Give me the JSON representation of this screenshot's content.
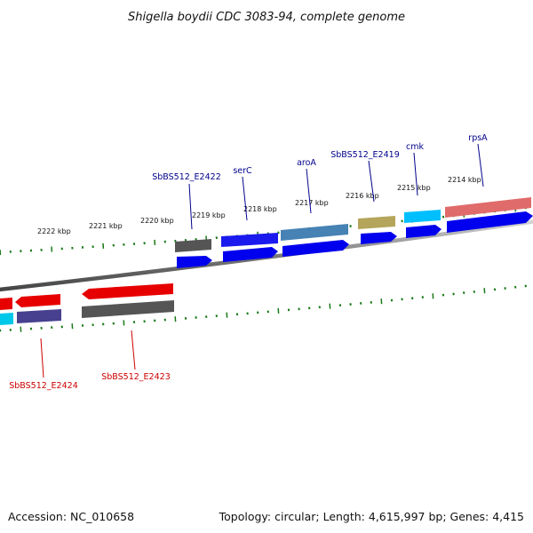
{
  "title": "Shigella boydii CDC 3083-94, complete genome",
  "footer": {
    "accession": "Accession: NC_010658",
    "summary": "Topology: circular; Length: 4,615,997 bp; Genes: 4,415"
  },
  "colors": {
    "top_label": "#00008b",
    "bottom_label": "#cc0000",
    "tick": "#1a7a1a",
    "backbone": "#8a8a8a"
  },
  "ruler_labels": [
    "2222 kbp",
    "2221 kbp",
    "2220 kbp",
    "2219 kbp",
    "2218 kbp",
    "2217 kbp",
    "2216 kbp",
    "2215 kbp",
    "2214 kbp"
  ],
  "top_genes": [
    {
      "label": "SbBS512_E2422"
    },
    {
      "label": "serC"
    },
    {
      "label": "aroA"
    },
    {
      "label": "SbBS512_E2419"
    },
    {
      "label": "cmk"
    },
    {
      "label": "rpsA"
    }
  ],
  "bottom_genes": [
    {
      "label": "SbBS512_E2424"
    },
    {
      "label": "SbBS512_E2423"
    }
  ]
}
